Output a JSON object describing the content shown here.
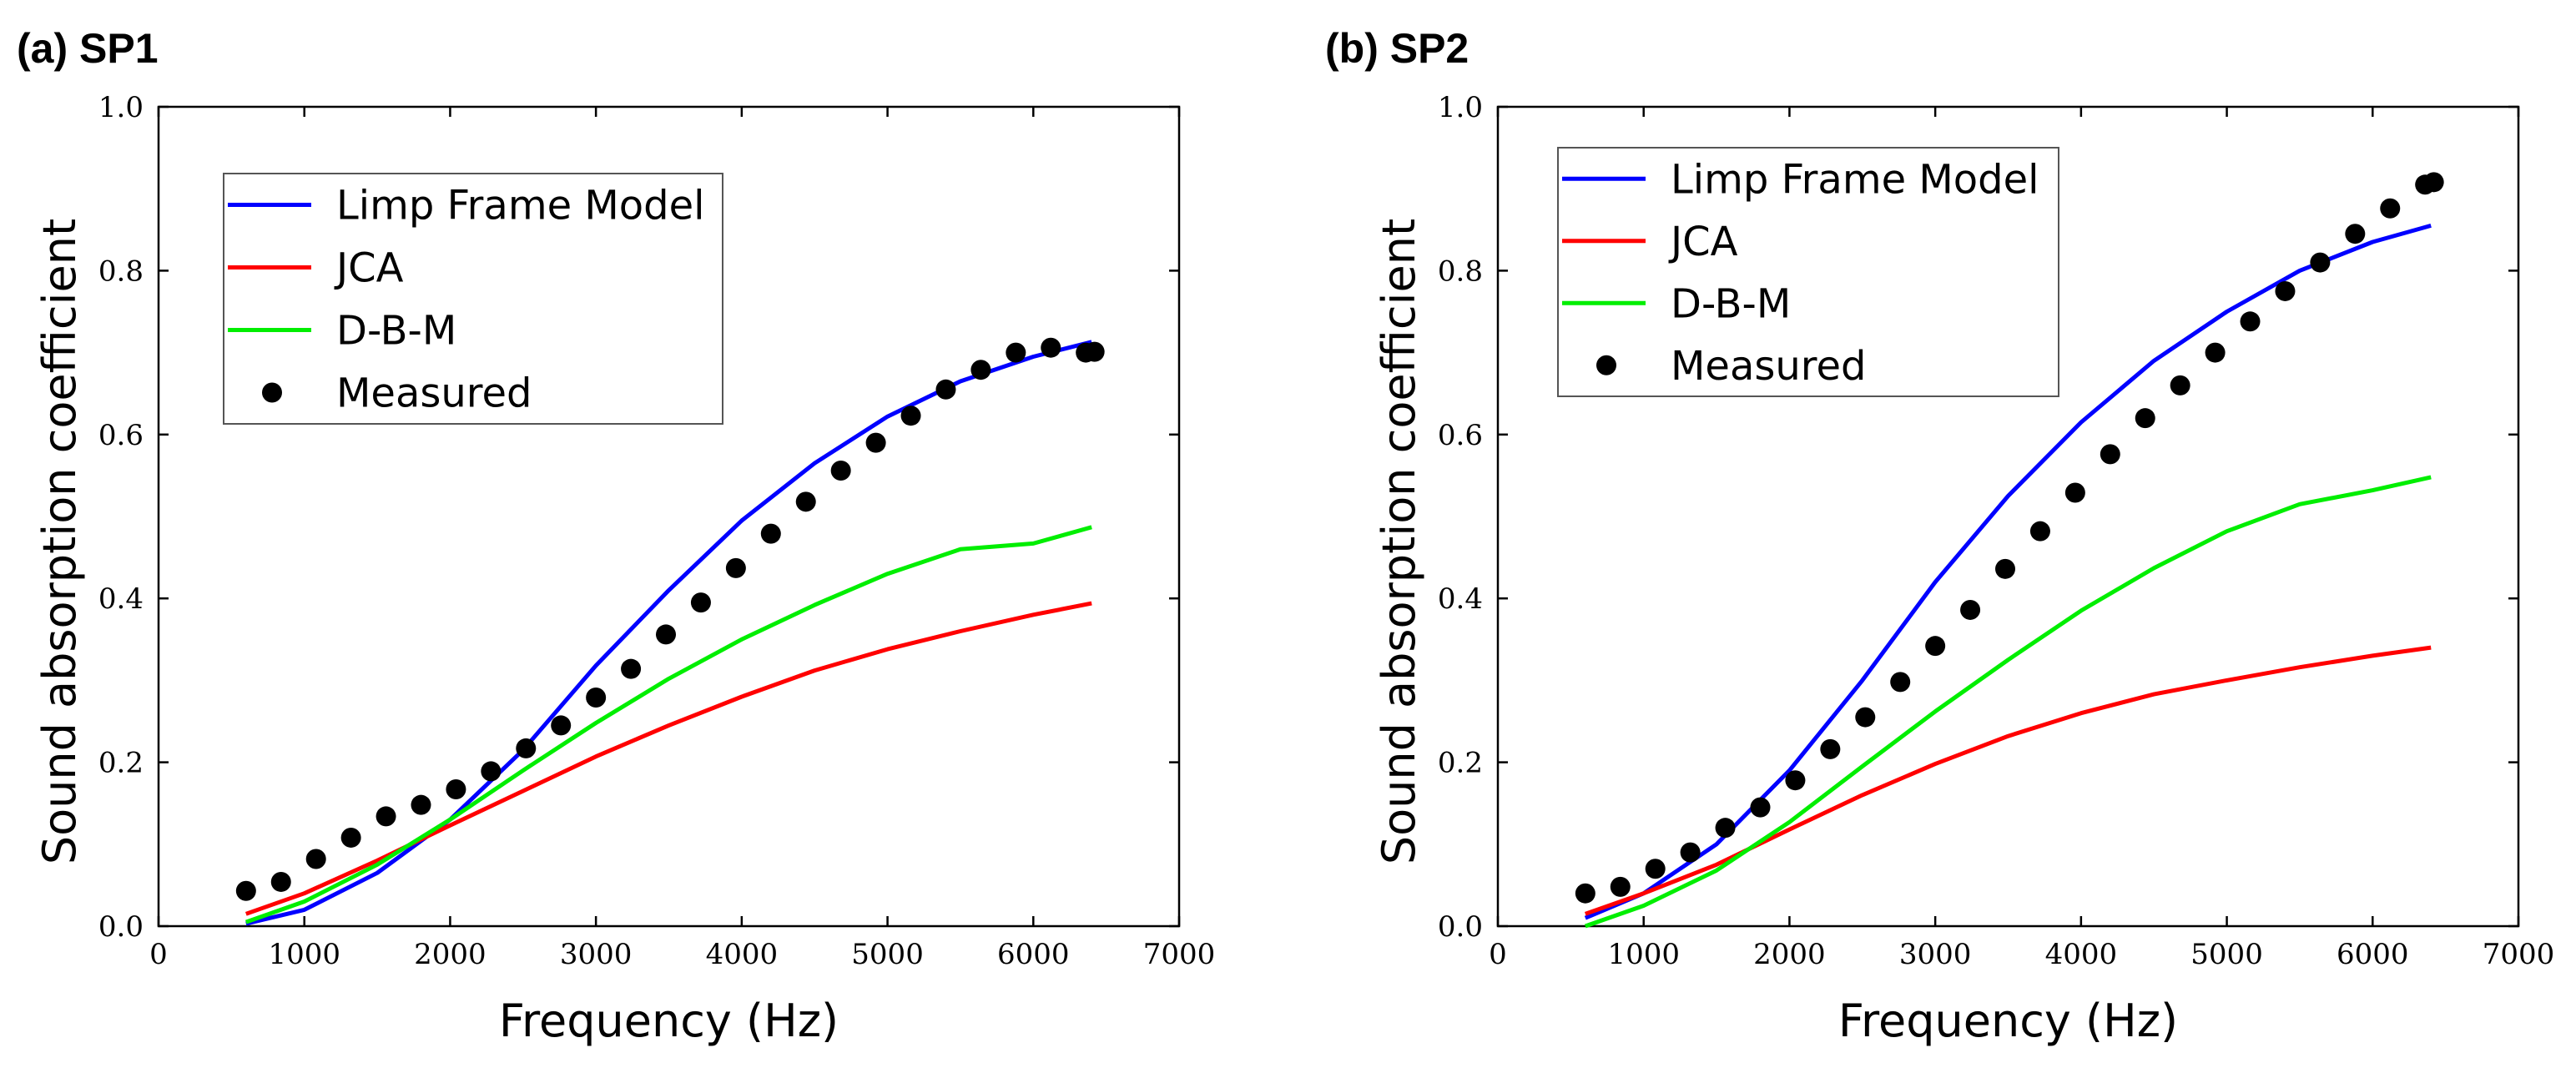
{
  "chart_data": [
    {
      "type": "line",
      "panel_title": "(a) SP1",
      "xlabel": "Frequency (Hz)",
      "ylabel": "Sound absorption coefficient",
      "xlim": [
        0,
        7000
      ],
      "ylim": [
        0,
        1.0
      ],
      "xticks": [
        "0",
        "1000",
        "2000",
        "3000",
        "4000",
        "5000",
        "6000",
        "7000"
      ],
      "yticks": [
        "0.0",
        "0.2",
        "0.4",
        "0.6",
        "0.8",
        "1.0"
      ],
      "legend_position": "top-left",
      "series": [
        {
          "name": "Limp Frame Model",
          "color": "#0000ff",
          "style": "line",
          "points": [
            [
              600,
              0.003
            ],
            [
              1000,
              0.02
            ],
            [
              1500,
              0.065
            ],
            [
              2000,
              0.13
            ],
            [
              2500,
              0.215
            ],
            [
              3000,
              0.318
            ],
            [
              3500,
              0.41
            ],
            [
              4000,
              0.495
            ],
            [
              4500,
              0.565
            ],
            [
              5000,
              0.622
            ],
            [
              5500,
              0.665
            ],
            [
              6000,
              0.695
            ],
            [
              6400,
              0.713
            ]
          ]
        },
        {
          "name": "JCA",
          "color": "#ff0000",
          "style": "line",
          "points": [
            [
              600,
              0.015
            ],
            [
              1000,
              0.04
            ],
            [
              1500,
              0.08
            ],
            [
              2000,
              0.123
            ],
            [
              2500,
              0.165
            ],
            [
              3000,
              0.207
            ],
            [
              3500,
              0.245
            ],
            [
              4000,
              0.28
            ],
            [
              4500,
              0.312
            ],
            [
              5000,
              0.338
            ],
            [
              5500,
              0.36
            ],
            [
              6000,
              0.38
            ],
            [
              6400,
              0.394
            ]
          ]
        },
        {
          "name": "D-B-M",
          "color": "#00ee00",
          "style": "line",
          "points": [
            [
              600,
              0.005
            ],
            [
              1000,
              0.03
            ],
            [
              1500,
              0.075
            ],
            [
              2000,
              0.13
            ],
            [
              2500,
              0.19
            ],
            [
              3000,
              0.248
            ],
            [
              3500,
              0.302
            ],
            [
              4000,
              0.35
            ],
            [
              4500,
              0.392
            ],
            [
              5000,
              0.43
            ],
            [
              5500,
              0.46
            ],
            [
              6000,
              0.467
            ],
            [
              6400,
              0.487
            ]
          ]
        },
        {
          "name": "Measured",
          "color": "#000000",
          "style": "marker",
          "points": [
            [
              600,
              0.043
            ],
            [
              840,
              0.054
            ],
            [
              1080,
              0.082
            ],
            [
              1320,
              0.108
            ],
            [
              1560,
              0.134
            ],
            [
              1800,
              0.148
            ],
            [
              2040,
              0.167
            ],
            [
              2280,
              0.189
            ],
            [
              2520,
              0.217
            ],
            [
              2760,
              0.245
            ],
            [
              3000,
              0.279
            ],
            [
              3240,
              0.314
            ],
            [
              3480,
              0.356
            ],
            [
              3720,
              0.395
            ],
            [
              3960,
              0.437
            ],
            [
              4200,
              0.479
            ],
            [
              4440,
              0.518
            ],
            [
              4680,
              0.556
            ],
            [
              4920,
              0.59
            ],
            [
              5160,
              0.623
            ],
            [
              5400,
              0.655
            ],
            [
              5640,
              0.679
            ],
            [
              5880,
              0.7
            ],
            [
              6120,
              0.706
            ],
            [
              6360,
              0.7
            ],
            [
              6420,
              0.701
            ]
          ]
        }
      ]
    },
    {
      "type": "line",
      "panel_title": "(b) SP2",
      "xlabel": "Frequency (Hz)",
      "ylabel": "Sound absorption coefficient",
      "xlim": [
        0,
        7000
      ],
      "ylim": [
        0,
        1.0
      ],
      "xticks": [
        "0",
        "1000",
        "2000",
        "3000",
        "4000",
        "5000",
        "6000",
        "7000"
      ],
      "yticks": [
        "0.0",
        "0.2",
        "0.4",
        "0.6",
        "0.8",
        "1.0"
      ],
      "legend_position": "top-left",
      "series": [
        {
          "name": "Limp Frame Model",
          "color": "#0000ff",
          "style": "line",
          "points": [
            [
              600,
              0.01
            ],
            [
              1000,
              0.04
            ],
            [
              1500,
              0.1
            ],
            [
              2000,
              0.19
            ],
            [
              2500,
              0.3
            ],
            [
              3000,
              0.42
            ],
            [
              3500,
              0.525
            ],
            [
              4000,
              0.615
            ],
            [
              4500,
              0.69
            ],
            [
              5000,
              0.75
            ],
            [
              5500,
              0.8
            ],
            [
              6000,
              0.835
            ],
            [
              6400,
              0.855
            ]
          ]
        },
        {
          "name": "JCA",
          "color": "#ff0000",
          "style": "line",
          "points": [
            [
              600,
              0.015
            ],
            [
              1000,
              0.04
            ],
            [
              1500,
              0.075
            ],
            [
              2000,
              0.118
            ],
            [
              2500,
              0.16
            ],
            [
              3000,
              0.198
            ],
            [
              3500,
              0.232
            ],
            [
              4000,
              0.26
            ],
            [
              4500,
              0.283
            ],
            [
              5000,
              0.3
            ],
            [
              5500,
              0.316
            ],
            [
              6000,
              0.33
            ],
            [
              6400,
              0.34
            ]
          ]
        },
        {
          "name": "D-B-M",
          "color": "#00ee00",
          "style": "line",
          "points": [
            [
              600,
              0.0
            ],
            [
              1000,
              0.025
            ],
            [
              1500,
              0.068
            ],
            [
              2000,
              0.127
            ],
            [
              2500,
              0.195
            ],
            [
              3000,
              0.262
            ],
            [
              3500,
              0.325
            ],
            [
              4000,
              0.385
            ],
            [
              4500,
              0.437
            ],
            [
              5000,
              0.482
            ],
            [
              5500,
              0.515
            ],
            [
              6000,
              0.532
            ],
            [
              6400,
              0.548
            ]
          ]
        },
        {
          "name": "Measured",
          "color": "#000000",
          "style": "marker",
          "points": [
            [
              600,
              0.04
            ],
            [
              840,
              0.048
            ],
            [
              1080,
              0.07
            ],
            [
              1320,
              0.09
            ],
            [
              1560,
              0.12
            ],
            [
              1800,
              0.145
            ],
            [
              2040,
              0.178
            ],
            [
              2280,
              0.216
            ],
            [
              2520,
              0.255
            ],
            [
              2760,
              0.298
            ],
            [
              3000,
              0.342
            ],
            [
              3240,
              0.386
            ],
            [
              3480,
              0.436
            ],
            [
              3720,
              0.482
            ],
            [
              3960,
              0.529
            ],
            [
              4200,
              0.576
            ],
            [
              4440,
              0.62
            ],
            [
              4680,
              0.66
            ],
            [
              4920,
              0.7
            ],
            [
              5160,
              0.738
            ],
            [
              5400,
              0.775
            ],
            [
              5640,
              0.81
            ],
            [
              5880,
              0.845
            ],
            [
              6120,
              0.876
            ],
            [
              6360,
              0.905
            ],
            [
              6420,
              0.908
            ]
          ]
        }
      ]
    }
  ]
}
